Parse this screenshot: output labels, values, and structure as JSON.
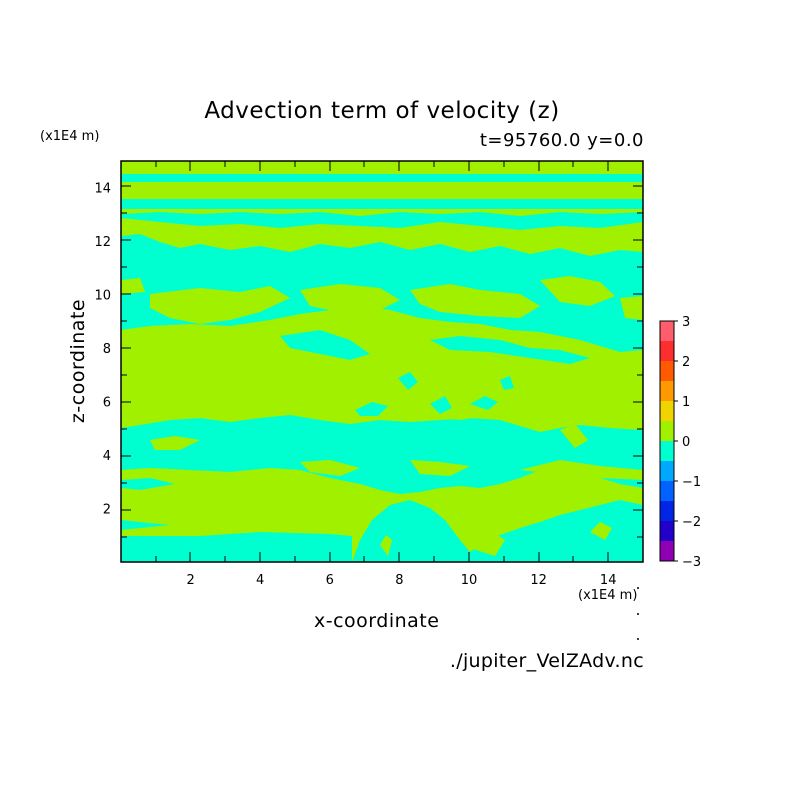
{
  "chart_data": {
    "type": "heatmap",
    "title": "Advection term of velocity (z)",
    "subtitle": "t=95760.0 y=0.0",
    "xlabel": "x-coordinate",
    "ylabel": "z-coordinate",
    "x_unit": "(x1E4 m)",
    "y_unit": "(x1E4 m)",
    "xlim": [
      0,
      15
    ],
    "ylim": [
      0,
      15
    ],
    "x_ticks": [
      "2",
      "4",
      "6",
      "8",
      "10",
      "12",
      "14"
    ],
    "y_ticks": [
      "2",
      "4",
      "6",
      "8",
      "10",
      "12",
      "14"
    ],
    "colorbar": {
      "ticks": [
        "3",
        "2",
        "1",
        "0",
        "−1",
        "−2",
        "−3"
      ],
      "levels": [
        -3,
        -2.5,
        -2,
        -1.5,
        -1,
        -0.5,
        0,
        0.5,
        1,
        1.5,
        2,
        2.5,
        3
      ],
      "colors": [
        "#8f00b5",
        "#2200cc",
        "#0025e6",
        "#0062ff",
        "#00a8ff",
        "#00ffd0",
        "#a0f000",
        "#f0d400",
        "#ff9900",
        "#ff5a00",
        "#ff2e2e",
        "#ff5c6c"
      ]
    },
    "dominant_fill": {
      "positive": "#a0f000",
      "negative": "#00ffd0"
    },
    "source": "./jupiter_VelZAdv.nc"
  }
}
